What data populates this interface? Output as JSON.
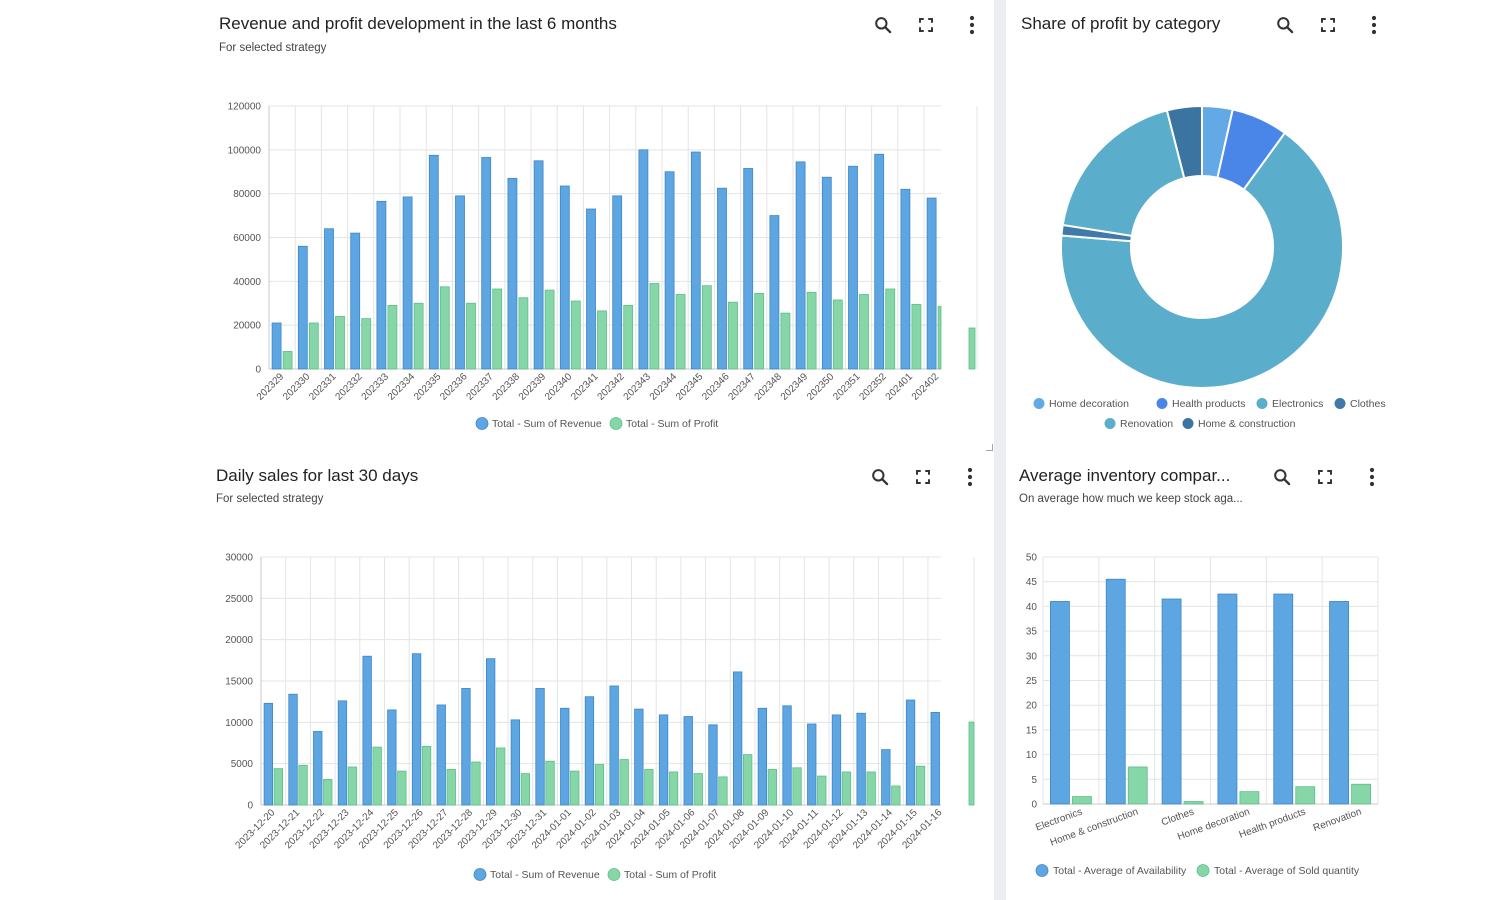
{
  "colors": {
    "revenue": "#5ea6e2",
    "revenue_stroke": "#3c86c8",
    "profit": "#86d6a8",
    "profit_stroke": "#5cbf86"
  },
  "revenue_panel": {
    "title": "Revenue and profit development in the last 6 months",
    "subtitle": "For selected strategy",
    "icons": [
      "search-icon",
      "fullscreen-icon",
      "more-vert-icon"
    ],
    "chart_data": {
      "type": "bar",
      "categories": [
        "202329",
        "202330",
        "202331",
        "202332",
        "202333",
        "202334",
        "202335",
        "202336",
        "202337",
        "202338",
        "202339",
        "202340",
        "202341",
        "202342",
        "202343",
        "202344",
        "202345",
        "202346",
        "202347",
        "202348",
        "202349",
        "202350",
        "202351",
        "202352",
        "202401",
        "202402"
      ],
      "series": [
        {
          "name": "Total - Sum of Revenue",
          "values": [
            21000,
            56000,
            64000,
            62000,
            76500,
            78500,
            97500,
            79000,
            96500,
            87000,
            95000,
            83500,
            73000,
            79000,
            100000,
            90000,
            99000,
            82500,
            91500,
            70000,
            94500,
            87500,
            92500,
            98000,
            82000,
            78000
          ]
        },
        {
          "name": "Total - Sum of Profit",
          "values": [
            8000,
            21000,
            24000,
            23000,
            29000,
            30000,
            37500,
            30000,
            36500,
            32500,
            36000,
            31000,
            26500,
            29000,
            39000,
            34000,
            38000,
            30500,
            34500,
            25500,
            35000,
            31500,
            34000,
            36500,
            29500,
            28500
          ]
        }
      ],
      "ylim": [
        0,
        120000
      ],
      "yticks": [
        "0",
        "20000",
        "40000",
        "60000",
        "80000",
        "100000",
        "120000"
      ],
      "legend": "bottom"
    }
  },
  "share_panel": {
    "title": "Share of profit by category",
    "icons": [
      "search-icon",
      "fullscreen-icon",
      "more-vert-icon"
    ],
    "chart_data": {
      "type": "pie",
      "labels": [
        "Home decoration",
        "Health products",
        "Electronics",
        "Clothes",
        "Renovation",
        "Home & construction"
      ],
      "values": [
        3.5,
        6.5,
        66.3,
        1.2,
        18.5,
        4.0
      ],
      "colors": [
        "#62a9e6",
        "#4a86e8",
        "#5aaecb",
        "#3f7aa8",
        "#5aaecb",
        "#3b74a0"
      ],
      "legend": "bottom"
    }
  },
  "daily_panel": {
    "title": "Daily sales for last 30 days",
    "subtitle": "For selected strategy",
    "icons": [
      "search-icon",
      "fullscreen-icon",
      "more-vert-icon"
    ],
    "chart_data": {
      "type": "bar",
      "categories": [
        "2023-12-20",
        "2023-12-21",
        "2023-12-22",
        "2023-12-23",
        "2023-12-24",
        "2023-12-25",
        "2023-12-26",
        "2023-12-27",
        "2023-12-28",
        "2023-12-29",
        "2023-12-30",
        "2023-12-31",
        "2024-01-01",
        "2024-01-02",
        "2024-01-03",
        "2024-01-04",
        "2024-01-05",
        "2024-01-06",
        "2024-01-07",
        "2024-01-08",
        "2024-01-09",
        "2024-01-10",
        "2024-01-11",
        "2024-01-12",
        "2024-01-13",
        "2024-01-14",
        "2024-01-15",
        "2024-01-16"
      ],
      "series": [
        {
          "name": "Total - Sum of Revenue",
          "values": [
            12300,
            13400,
            8900,
            12600,
            18000,
            11500,
            18300,
            12100,
            14100,
            17700,
            10300,
            14100,
            11700,
            13100,
            14400,
            11600,
            10900,
            10700,
            9700,
            16100,
            11700,
            12000,
            9800,
            10900,
            11100,
            6700,
            12700,
            11200
          ]
        },
        {
          "name": "Total - Sum of Profit",
          "values": [
            4400,
            4800,
            3100,
            4600,
            7000,
            4100,
            7100,
            4300,
            5200,
            6900,
            3800,
            5300,
            4100,
            4900,
            5500,
            4300,
            4000,
            3800,
            3400,
            6100,
            4300,
            4500,
            3500,
            4000,
            4000,
            2300,
            4700,
            4200
          ]
        }
      ],
      "ylim": [
        0,
        30000
      ],
      "yticks": [
        "0",
        "5000",
        "10000",
        "15000",
        "20000",
        "25000",
        "30000"
      ],
      "legend": "bottom"
    }
  },
  "inventory_panel": {
    "title": "Average inventory compar...",
    "subtitle": "On average how much we keep stock aga...",
    "icons": [
      "search-icon",
      "fullscreen-icon",
      "more-vert-icon"
    ],
    "chart_data": {
      "type": "bar",
      "categories": [
        "Electronics",
        "Home & construction",
        "Clothes",
        "Home decoration",
        "Health products",
        "Renovation"
      ],
      "series": [
        {
          "name": "Total - Average of Availability",
          "values": [
            41,
            45.5,
            41.5,
            42.5,
            42.5,
            41
          ]
        },
        {
          "name": "Total - Average of Sold quantity",
          "values": [
            1.5,
            7.5,
            0.5,
            2.5,
            3.5,
            4
          ]
        }
      ],
      "ylim": [
        0,
        50
      ],
      "yticks": [
        "0",
        "5",
        "10",
        "15",
        "20",
        "25",
        "30",
        "35",
        "40",
        "45",
        "50"
      ],
      "legend": "bottom"
    }
  }
}
